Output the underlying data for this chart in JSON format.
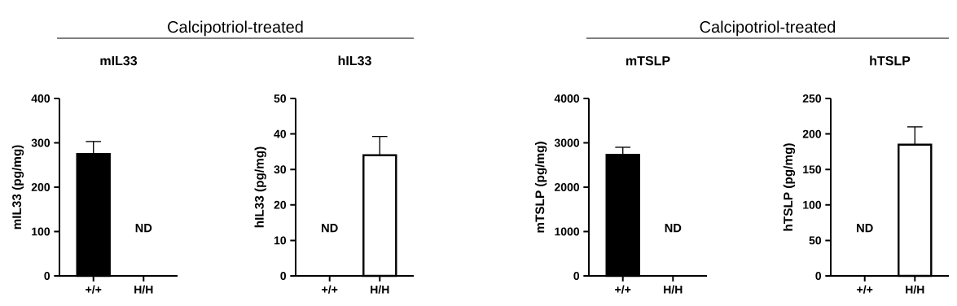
{
  "chart_data": [
    {
      "type": "bar",
      "title": "mIL33",
      "ylabel": "mIL33 (pg/mg)",
      "categories": [
        "+/+",
        "H/H"
      ],
      "values": [
        275,
        null
      ],
      "errors": [
        28,
        null
      ],
      "colors": [
        "#000000",
        "#ffffff"
      ],
      "ylim": [
        0,
        400
      ],
      "yticks": [
        0,
        100,
        200,
        300,
        400
      ],
      "annotations": [
        "ND",
        "Calcipotriol-treated"
      ]
    },
    {
      "type": "bar",
      "title": "hIL33",
      "ylabel": "hIL33 (pg/mg)",
      "categories": [
        "+/+",
        "H/H"
      ],
      "values": [
        null,
        34
      ],
      "errors": [
        null,
        5.3
      ],
      "colors": [
        "#000000",
        "#ffffff"
      ],
      "ylim": [
        0,
        50
      ],
      "yticks": [
        0,
        10,
        20,
        30,
        40,
        50
      ],
      "annotations": [
        "ND"
      ]
    },
    {
      "type": "bar",
      "title": "mTSLP",
      "ylabel": "mTSLP (pg/mg)",
      "categories": [
        "+/+",
        "H/H"
      ],
      "values": [
        2730,
        null
      ],
      "errors": [
        170,
        null
      ],
      "colors": [
        "#000000",
        "#ffffff"
      ],
      "ylim": [
        0,
        4000
      ],
      "yticks": [
        0,
        1000,
        2000,
        3000,
        4000
      ],
      "annotations": [
        "ND",
        "Calcipotriol-treated"
      ]
    },
    {
      "type": "bar",
      "title": "hTSLP",
      "ylabel": "hTSLP (pg/mg)",
      "categories": [
        "+/+",
        "H/H"
      ],
      "values": [
        null,
        185
      ],
      "errors": [
        null,
        25
      ],
      "colors": [
        "#000000",
        "#ffffff"
      ],
      "ylim": [
        0,
        250
      ],
      "yticks": [
        0,
        50,
        100,
        150,
        200,
        250
      ],
      "annotations": [
        "ND"
      ]
    }
  ]
}
